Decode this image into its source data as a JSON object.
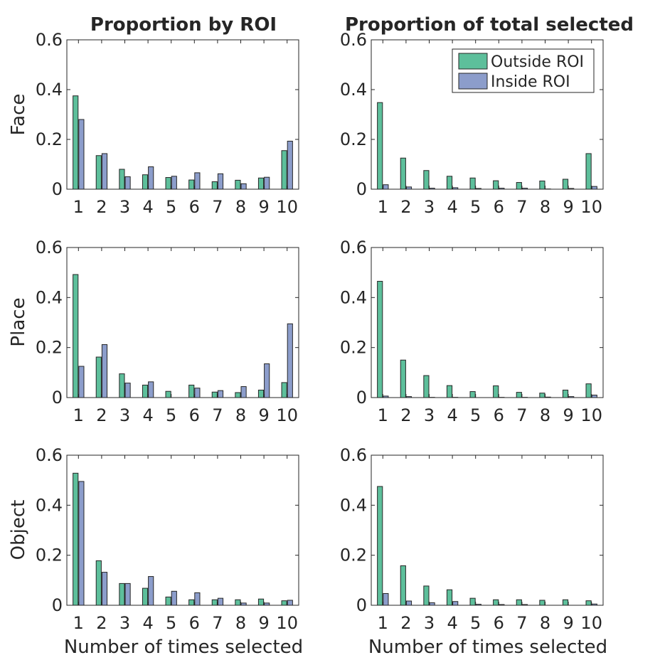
{
  "colors": {
    "outside": "#5dbf9b",
    "inside": "#8c9dcb",
    "axis": "#262626"
  },
  "column_titles": [
    "Proportion by ROI",
    "Proportion of total selected"
  ],
  "row_labels": [
    "Face",
    "Place",
    "Object"
  ],
  "xlabel": "Number of times selected",
  "legend": {
    "outside": "Outside ROI",
    "inside": "Inside ROI"
  },
  "chart_data": [
    {
      "type": "bar",
      "title": "Proportion by ROI",
      "xlabel": "",
      "ylabel": "Face",
      "categories": [
        "1",
        "2",
        "3",
        "4",
        "5",
        "6",
        "7",
        "8",
        "9",
        "10"
      ],
      "yticks": [
        "0",
        "0.2",
        "0.4",
        "0.6"
      ],
      "ylim": [
        0,
        0.6
      ],
      "legend_position": "none",
      "series": [
        {
          "name": "Outside ROI",
          "values": [
            0.375,
            0.135,
            0.08,
            0.058,
            0.047,
            0.037,
            0.03,
            0.036,
            0.045,
            0.155
          ]
        },
        {
          "name": "Inside ROI",
          "values": [
            0.28,
            0.143,
            0.05,
            0.09,
            0.052,
            0.066,
            0.062,
            0.022,
            0.048,
            0.193
          ]
        }
      ]
    },
    {
      "type": "bar",
      "title": "Proportion of total selected",
      "xlabel": "",
      "ylabel": "",
      "categories": [
        "1",
        "2",
        "3",
        "4",
        "5",
        "6",
        "7",
        "8",
        "9",
        "10"
      ],
      "yticks": [
        "0",
        "0.2",
        "0.4",
        "0.6"
      ],
      "ylim": [
        0,
        0.6
      ],
      "legend_position": "top-right",
      "series": [
        {
          "name": "Outside ROI",
          "values": [
            0.348,
            0.125,
            0.075,
            0.052,
            0.045,
            0.034,
            0.027,
            0.033,
            0.04,
            0.143
          ]
        },
        {
          "name": "Inside ROI",
          "values": [
            0.018,
            0.009,
            0.004,
            0.006,
            0.003,
            0.004,
            0.004,
            0.001,
            0.003,
            0.011
          ]
        }
      ]
    },
    {
      "type": "bar",
      "title": "",
      "xlabel": "",
      "ylabel": "Place",
      "categories": [
        "1",
        "2",
        "3",
        "4",
        "5",
        "6",
        "7",
        "8",
        "9",
        "10"
      ],
      "yticks": [
        "0",
        "0.2",
        "0.4",
        "0.6"
      ],
      "ylim": [
        0,
        0.6
      ],
      "legend_position": "none",
      "series": [
        {
          "name": "Outside ROI",
          "values": [
            0.492,
            0.162,
            0.095,
            0.05,
            0.025,
            0.05,
            0.022,
            0.02,
            0.03,
            0.06
          ]
        },
        {
          "name": "Inside ROI",
          "values": [
            0.125,
            0.212,
            0.058,
            0.063,
            0.0,
            0.038,
            0.028,
            0.044,
            0.135,
            0.295
          ]
        }
      ]
    },
    {
      "type": "bar",
      "title": "",
      "xlabel": "",
      "ylabel": "",
      "categories": [
        "1",
        "2",
        "3",
        "4",
        "5",
        "6",
        "7",
        "8",
        "9",
        "10"
      ],
      "yticks": [
        "0",
        "0.2",
        "0.4",
        "0.6"
      ],
      "ylim": [
        0,
        0.6
      ],
      "legend_position": "none",
      "series": [
        {
          "name": "Outside ROI",
          "values": [
            0.465,
            0.15,
            0.088,
            0.048,
            0.024,
            0.047,
            0.021,
            0.018,
            0.03,
            0.055
          ]
        },
        {
          "name": "Inside ROI",
          "values": [
            0.006,
            0.004,
            0.001,
            0.001,
            0.0,
            0.001,
            0.001,
            0.002,
            0.004,
            0.01
          ]
        }
      ]
    },
    {
      "type": "bar",
      "title": "",
      "xlabel": "Number of times selected",
      "ylabel": "Object",
      "categories": [
        "1",
        "2",
        "3",
        "4",
        "5",
        "6",
        "7",
        "8",
        "9",
        "10"
      ],
      "yticks": [
        "0",
        "0.2",
        "0.4",
        "0.6"
      ],
      "ylim": [
        0,
        0.6
      ],
      "legend_position": "none",
      "series": [
        {
          "name": "Outside ROI",
          "values": [
            0.528,
            0.178,
            0.087,
            0.068,
            0.033,
            0.022,
            0.022,
            0.022,
            0.025,
            0.018
          ]
        },
        {
          "name": "Inside ROI",
          "values": [
            0.495,
            0.132,
            0.087,
            0.115,
            0.056,
            0.05,
            0.028,
            0.009,
            0.009,
            0.02
          ]
        }
      ]
    },
    {
      "type": "bar",
      "title": "",
      "xlabel": "Number of times selected",
      "ylabel": "",
      "categories": [
        "1",
        "2",
        "3",
        "4",
        "5",
        "6",
        "7",
        "8",
        "9",
        "10"
      ],
      "yticks": [
        "0",
        "0.2",
        "0.4",
        "0.6"
      ],
      "ylim": [
        0,
        0.6
      ],
      "legend_position": "none",
      "series": [
        {
          "name": "Outside ROI",
          "values": [
            0.475,
            0.158,
            0.077,
            0.062,
            0.028,
            0.022,
            0.022,
            0.02,
            0.022,
            0.018
          ]
        },
        {
          "name": "Inside ROI",
          "values": [
            0.047,
            0.017,
            0.01,
            0.015,
            0.004,
            0.003,
            0.003,
            0.0,
            0.0,
            0.005
          ]
        }
      ]
    }
  ]
}
